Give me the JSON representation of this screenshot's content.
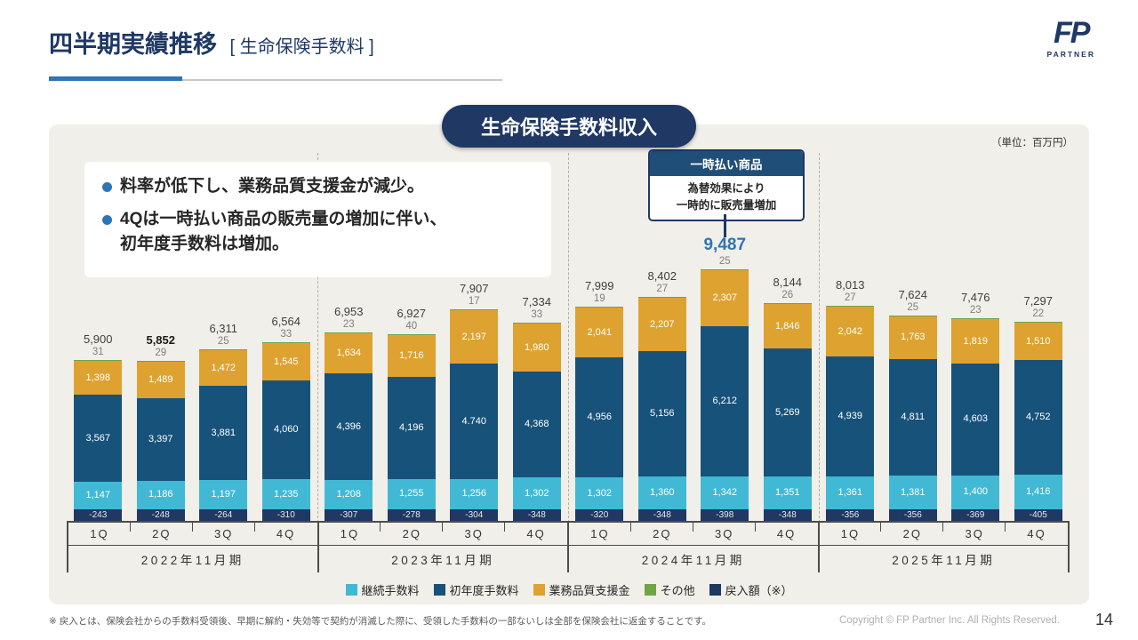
{
  "header": {
    "title_main": "四半期実績推移",
    "title_sub": "[ 生命保険手数料 ]"
  },
  "logo": {
    "main": "FP",
    "sub": "PARTNER"
  },
  "panel": {
    "badge": "生命保険手数料収入",
    "unit_note": "（単位：百万円）"
  },
  "notes": {
    "bullet1": "料率が低下し、業務品質支援金が減少。",
    "bullet2_line1": "4Qは一時払い商品の販売量の増加に伴い、",
    "bullet2_line2": "初年度手数料は増加。"
  },
  "callout": {
    "title": "一時払い商品",
    "body_line1": "為替効果により",
    "body_line2": "一時的に販売量増加"
  },
  "legend": [
    {
      "name": "continuing",
      "label": "継続手数料",
      "color": "#41B9D5"
    },
    {
      "name": "first-year",
      "label": "初年度手数料",
      "color": "#17527B"
    },
    {
      "name": "quality-support",
      "label": "業務品質支援金",
      "color": "#DEA231"
    },
    {
      "name": "other",
      "label": "その他",
      "color": "#70A544"
    },
    {
      "name": "reversal",
      "label": "戻入額（※）",
      "color": "#1F3864"
    }
  ],
  "footer": {
    "footnote": "※ 戻入とは、保険会社からの手数料受領後、早期に解約・失効等で契約が消滅した際に、受領した手数料の一部ないしは全部を保険会社に返金することです。",
    "copyright": "Copyright © FP Partner Inc. All Rights Reserved.",
    "page_number": "14"
  },
  "chart_data": {
    "type": "bar",
    "stacked": true,
    "unit": "百万円",
    "title": "生命保険手数料収入",
    "legend_position": "bottom",
    "series_bottom_to_top": [
      "戻入額（※）",
      "継続手数料",
      "初年度手数料",
      "業務品質支援金",
      "その他"
    ],
    "groups": [
      {
        "year": "2022年11月期",
        "bars": [
          {
            "quarter": "1Q",
            "total_label": "5,900",
            "highlight": false,
            "bold": false,
            "other": {
              "v": 31,
              "label": "31"
            },
            "quality": {
              "v": 1398,
              "label": "1,398"
            },
            "first": {
              "v": 3567,
              "label": "3,567"
            },
            "cont": {
              "v": 1147,
              "label": "1,147"
            },
            "reversal": {
              "v": -243,
              "label": "-243"
            }
          },
          {
            "quarter": "2Q",
            "total_label": "5,852",
            "highlight": false,
            "bold": true,
            "other": {
              "v": 29,
              "label": "29"
            },
            "quality": {
              "v": 1489,
              "label": "1,489"
            },
            "first": {
              "v": 3397,
              "label": "3,397"
            },
            "cont": {
              "v": 1186,
              "label": "1,186"
            },
            "reversal": {
              "v": -248,
              "label": "-248"
            }
          },
          {
            "quarter": "3Q",
            "total_label": "6,311",
            "highlight": false,
            "bold": false,
            "other": {
              "v": 25,
              "label": "25"
            },
            "quality": {
              "v": 1472,
              "label": "1,472"
            },
            "first": {
              "v": 3881,
              "label": "3,881"
            },
            "cont": {
              "v": 1197,
              "label": "1,197"
            },
            "reversal": {
              "v": -264,
              "label": "-264"
            }
          },
          {
            "quarter": "4Q",
            "total_label": "6,564",
            "highlight": false,
            "bold": false,
            "other": {
              "v": 33,
              "label": "33"
            },
            "quality": {
              "v": 1545,
              "label": "1,545"
            },
            "first": {
              "v": 4060,
              "label": "4,060"
            },
            "cont": {
              "v": 1235,
              "label": "1,235"
            },
            "reversal": {
              "v": -310,
              "label": "-310"
            }
          }
        ]
      },
      {
        "year": "2023年11月期",
        "bars": [
          {
            "quarter": "1Q",
            "total_label": "6,953",
            "highlight": false,
            "bold": false,
            "other": {
              "v": 23,
              "label": "23"
            },
            "quality": {
              "v": 1634,
              "label": "1,634"
            },
            "first": {
              "v": 4396,
              "label": "4,396"
            },
            "cont": {
              "v": 1208,
              "label": "1,208"
            },
            "reversal": {
              "v": -307,
              "label": "-307"
            }
          },
          {
            "quarter": "2Q",
            "total_label": "6,927",
            "highlight": false,
            "bold": false,
            "other": {
              "v": 40,
              "label": "40"
            },
            "quality": {
              "v": 1716,
              "label": "1,716"
            },
            "first": {
              "v": 4196,
              "label": "4,196"
            },
            "cont": {
              "v": 1255,
              "label": "1,255"
            },
            "reversal": {
              "v": -278,
              "label": "-278"
            }
          },
          {
            "quarter": "3Q",
            "total_label": "7,907",
            "highlight": false,
            "bold": false,
            "other": {
              "v": 17,
              "label": "17"
            },
            "quality": {
              "v": 2197,
              "label": "2,197"
            },
            "first": {
              "v": 4740,
              "label": "4.740"
            },
            "cont": {
              "v": 1256,
              "label": "1,256"
            },
            "reversal": {
              "v": -304,
              "label": "-304"
            }
          },
          {
            "quarter": "4Q",
            "total_label": "7,334",
            "highlight": false,
            "bold": false,
            "other": {
              "v": 33,
              "label": "33"
            },
            "quality": {
              "v": 1980,
              "label": "1,980"
            },
            "first": {
              "v": 4368,
              "label": "4,368"
            },
            "cont": {
              "v": 1302,
              "label": "1,302"
            },
            "reversal": {
              "v": -348,
              "label": "-348"
            }
          }
        ]
      },
      {
        "year": "2024年11月期",
        "bars": [
          {
            "quarter": "1Q",
            "total_label": "7,999",
            "highlight": false,
            "bold": false,
            "other": {
              "v": 19,
              "label": "19"
            },
            "quality": {
              "v": 2041,
              "label": "2,041"
            },
            "first": {
              "v": 4956,
              "label": "4,956"
            },
            "cont": {
              "v": 1302,
              "label": "1,302"
            },
            "reversal": {
              "v": -320,
              "label": "-320"
            }
          },
          {
            "quarter": "2Q",
            "total_label": "8,402",
            "highlight": false,
            "bold": false,
            "other": {
              "v": 27,
              "label": "27"
            },
            "quality": {
              "v": 2207,
              "label": "2,207"
            },
            "first": {
              "v": 5156,
              "label": "5,156"
            },
            "cont": {
              "v": 1360,
              "label": "1,360"
            },
            "reversal": {
              "v": -348,
              "label": "-348"
            }
          },
          {
            "quarter": "3Q",
            "total_label": "9,487",
            "highlight": true,
            "bold": false,
            "other": {
              "v": 25,
              "label": "25"
            },
            "quality": {
              "v": 2307,
              "label": "2,307"
            },
            "first": {
              "v": 6212,
              "label": "6,212"
            },
            "cont": {
              "v": 1342,
              "label": "1,342"
            },
            "reversal": {
              "v": -398,
              "label": "-398"
            }
          },
          {
            "quarter": "4Q",
            "total_label": "8,144",
            "highlight": false,
            "bold": false,
            "other": {
              "v": 26,
              "label": "26"
            },
            "quality": {
              "v": 1846,
              "label": "1,846"
            },
            "first": {
              "v": 5269,
              "label": "5,269"
            },
            "cont": {
              "v": 1351,
              "label": "1,351"
            },
            "reversal": {
              "v": -348,
              "label": "-348"
            }
          }
        ]
      },
      {
        "year": "2025年11月期",
        "bars": [
          {
            "quarter": "1Q",
            "total_label": "8,013",
            "highlight": false,
            "bold": false,
            "other": {
              "v": 27,
              "label": "27"
            },
            "quality": {
              "v": 2042,
              "label": "2,042"
            },
            "first": {
              "v": 4939,
              "label": "4,939"
            },
            "cont": {
              "v": 1361,
              "label": "1,361"
            },
            "reversal": {
              "v": -356,
              "label": "-356"
            }
          },
          {
            "quarter": "2Q",
            "total_label": "7,624",
            "highlight": false,
            "bold": false,
            "other": {
              "v": 25,
              "label": "25"
            },
            "quality": {
              "v": 1763,
              "label": "1,763"
            },
            "first": {
              "v": 4811,
              "label": "4,811"
            },
            "cont": {
              "v": 1381,
              "label": "1,381"
            },
            "reversal": {
              "v": -356,
              "label": "-356"
            }
          },
          {
            "quarter": "3Q",
            "total_label": "7,476",
            "highlight": false,
            "bold": false,
            "other": {
              "v": 23,
              "label": "23"
            },
            "quality": {
              "v": 1819,
              "label": "1,819"
            },
            "first": {
              "v": 4603,
              "label": "4,603"
            },
            "cont": {
              "v": 1400,
              "label": "1,400"
            },
            "reversal": {
              "v": -369,
              "label": "-369"
            }
          },
          {
            "quarter": "4Q",
            "total_label": "7,297",
            "highlight": false,
            "bold": false,
            "other": {
              "v": 22,
              "label": "22"
            },
            "quality": {
              "v": 1510,
              "label": "1,510"
            },
            "first": {
              "v": 4752,
              "label": "4,752"
            },
            "cont": {
              "v": 1416,
              "label": "1,416"
            },
            "reversal": {
              "v": -405,
              "label": "-405"
            }
          }
        ]
      }
    ]
  }
}
